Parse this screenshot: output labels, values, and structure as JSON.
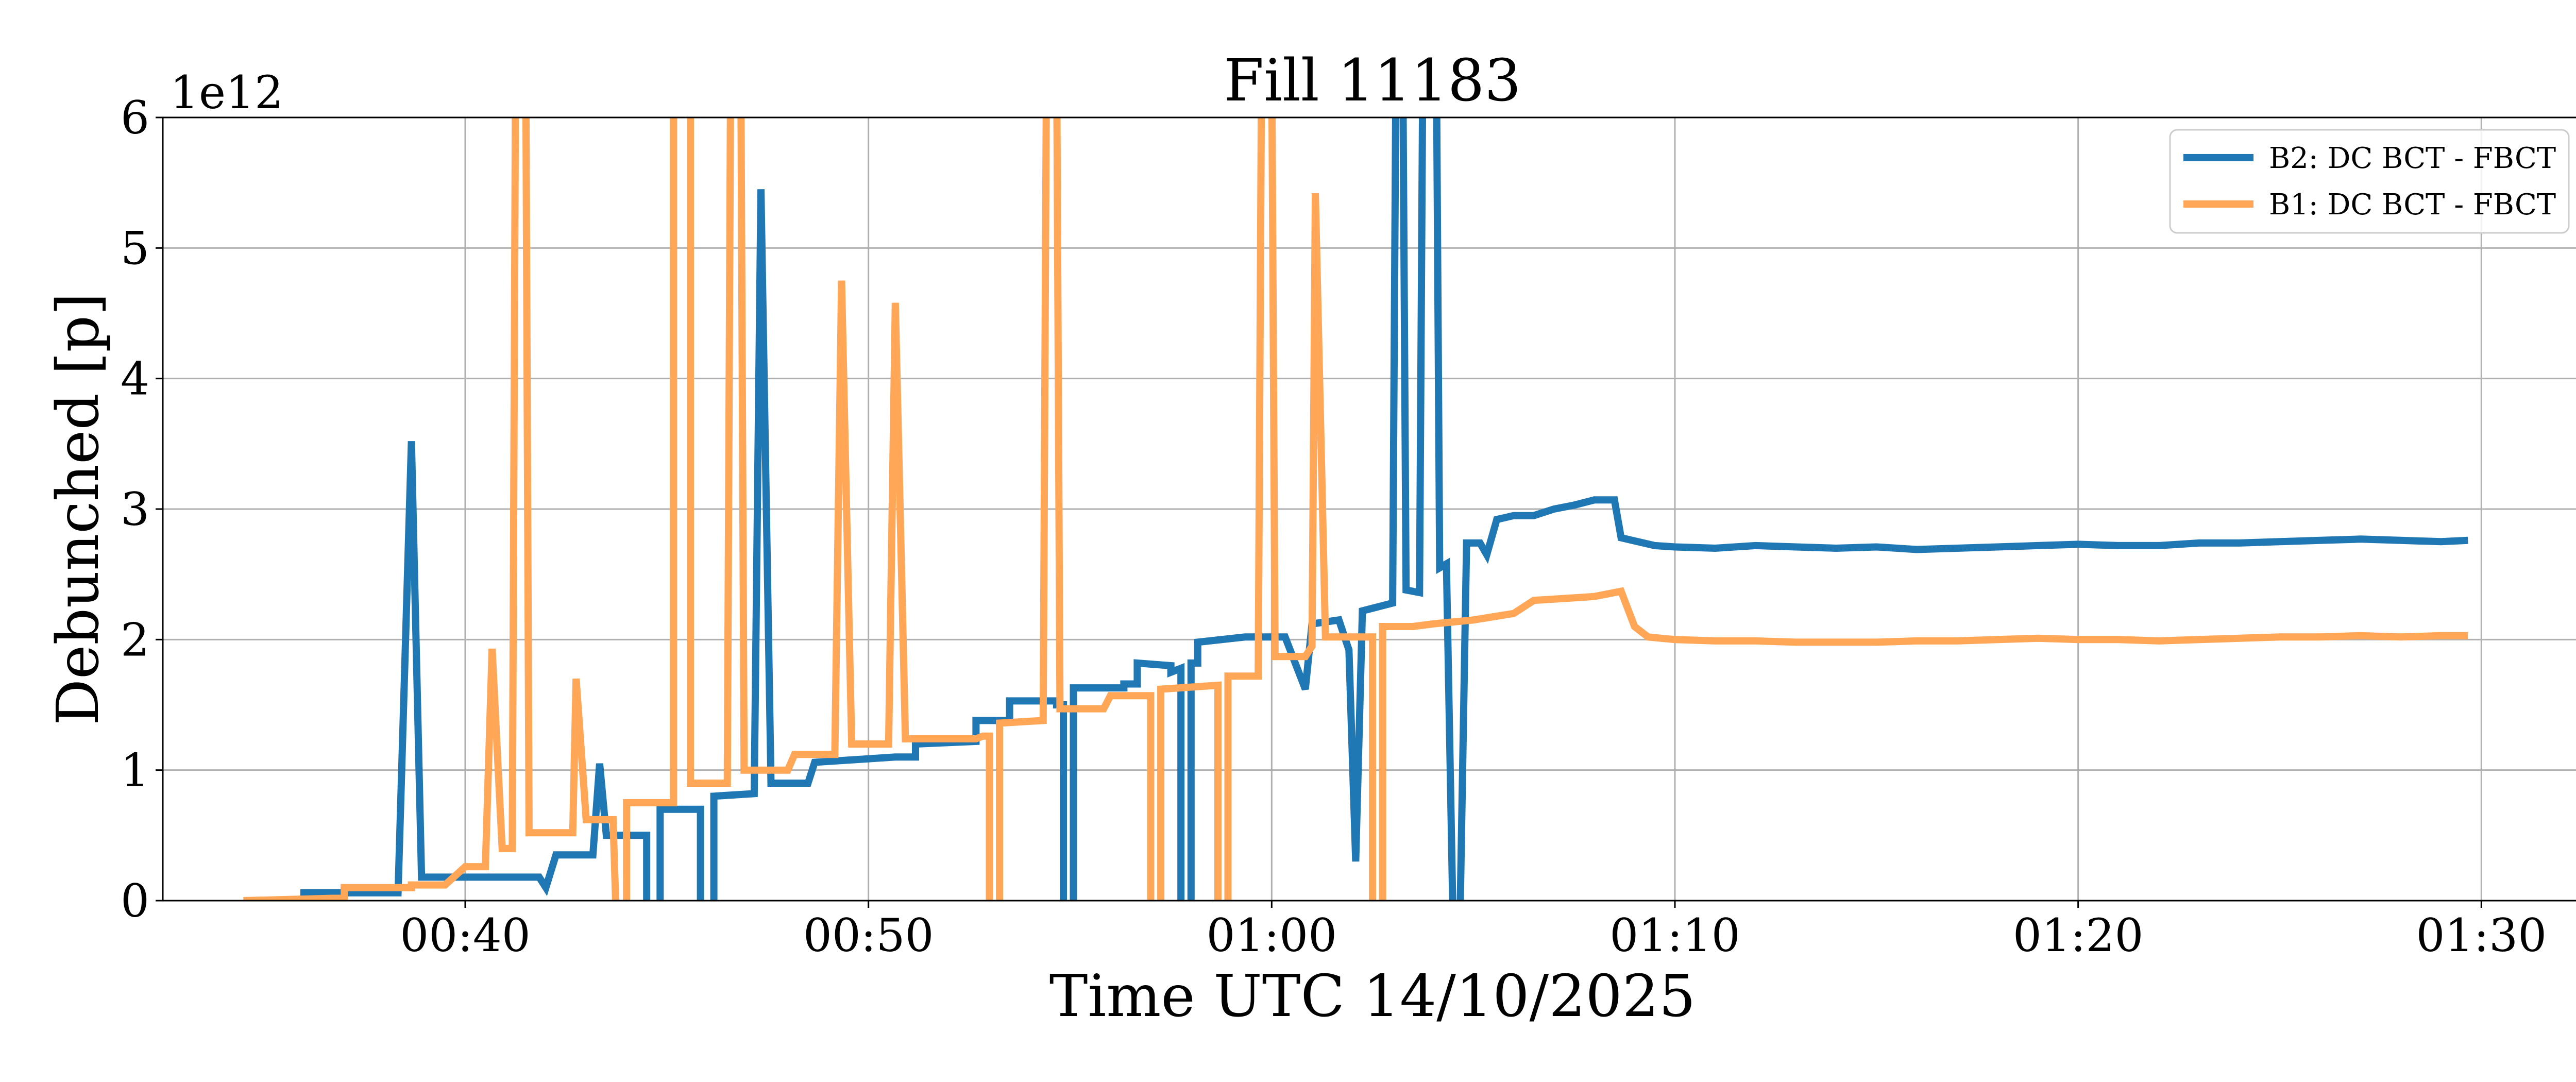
{
  "chart_data": {
    "type": "line",
    "title": "Fill 11183",
    "xlabel": "Time UTC 14/10/2025",
    "ylabel": "Debunched [p]",
    "y_offset_label": "1e12",
    "xlim": [
      "00:32:30",
      "01:32:30"
    ],
    "ylim": [
      0,
      6
    ],
    "y_scale": 1000000000000.0,
    "x_ticks": [
      "00:40",
      "00:50",
      "01:00",
      "01:10",
      "01:20",
      "01:30"
    ],
    "y_ticks": [
      0,
      1,
      2,
      3,
      4,
      5,
      6
    ],
    "grid": true,
    "legend_position": "top-right",
    "series": [
      {
        "name": "B2: DC BCT - FBCT",
        "color": "#1f77b4",
        "points": [
          [
            "00:34:30",
            0.0
          ],
          [
            "00:36:00",
            0.0
          ],
          [
            "00:36:00",
            0.06
          ],
          [
            "00:38:20",
            0.06
          ],
          [
            "00:38:40",
            3.52
          ],
          [
            "00:38:55",
            0.18
          ],
          [
            "00:41:50",
            0.18
          ],
          [
            "00:42:00",
            0.1
          ],
          [
            "00:42:15",
            0.35
          ],
          [
            "00:43:10",
            0.35
          ],
          [
            "00:43:20",
            1.05
          ],
          [
            "00:43:30",
            0.5
          ],
          [
            "00:44:30",
            0.5
          ],
          [
            "00:44:30",
            -0.2
          ],
          [
            "00:44:50",
            -0.2
          ],
          [
            "00:44:50",
            0.7
          ],
          [
            "00:45:50",
            0.7
          ],
          [
            "00:45:50",
            -0.2
          ],
          [
            "00:46:10",
            -0.2
          ],
          [
            "00:46:10",
            0.8
          ],
          [
            "00:47:10",
            0.82
          ],
          [
            "00:47:20",
            5.45
          ],
          [
            "00:47:35",
            0.9
          ],
          [
            "00:48:30",
            0.9
          ],
          [
            "00:48:40",
            1.06
          ],
          [
            "00:50:40",
            1.1
          ],
          [
            "00:51:10",
            1.1
          ],
          [
            "00:51:10",
            1.2
          ],
          [
            "00:52:40",
            1.22
          ],
          [
            "00:52:40",
            1.38
          ],
          [
            "00:53:30",
            1.38
          ],
          [
            "00:53:30",
            1.53
          ],
          [
            "00:54:40",
            1.53
          ],
          [
            "00:54:40",
            1.5
          ],
          [
            "00:54:50",
            1.5
          ],
          [
            "00:54:50",
            -0.2
          ],
          [
            "00:55:05",
            -0.2
          ],
          [
            "00:55:05",
            1.63
          ],
          [
            "00:56:20",
            1.63
          ],
          [
            "00:56:20",
            1.66
          ],
          [
            "00:56:40",
            1.66
          ],
          [
            "00:56:40",
            1.82
          ],
          [
            "00:57:30",
            1.8
          ],
          [
            "00:57:30",
            1.75
          ],
          [
            "00:57:45",
            1.78
          ],
          [
            "00:57:45",
            -0.2
          ],
          [
            "00:58:00",
            -0.2
          ],
          [
            "00:58:00",
            1.82
          ],
          [
            "00:58:10",
            1.82
          ],
          [
            "00:58:10",
            1.98
          ],
          [
            "00:59:20",
            2.02
          ],
          [
            "01:00:20",
            2.02
          ],
          [
            "01:00:50",
            1.62
          ],
          [
            "01:01:00",
            2.12
          ],
          [
            "01:01:40",
            2.15
          ],
          [
            "01:01:55",
            1.92
          ],
          [
            "01:02:05",
            0.3
          ],
          [
            "01:02:15",
            2.22
          ],
          [
            "01:03:00",
            2.28
          ],
          [
            "01:03:05",
            6.5
          ],
          [
            "01:03:15",
            6.5
          ],
          [
            "01:03:20",
            2.38
          ],
          [
            "01:03:40",
            2.36
          ],
          [
            "01:03:45",
            6.5
          ],
          [
            "01:04:05",
            6.5
          ],
          [
            "01:04:10",
            2.55
          ],
          [
            "01:04:20",
            2.58
          ],
          [
            "01:04:30",
            -0.2
          ],
          [
            "01:04:40",
            -0.2
          ],
          [
            "01:04:50",
            2.74
          ],
          [
            "01:05:10",
            2.74
          ],
          [
            "01:05:20",
            2.65
          ],
          [
            "01:05:35",
            2.92
          ],
          [
            "01:06:00",
            2.95
          ],
          [
            "01:06:30",
            2.95
          ],
          [
            "01:07:00",
            3.0
          ],
          [
            "01:07:30",
            3.03
          ],
          [
            "01:08:00",
            3.07
          ],
          [
            "01:08:30",
            3.07
          ],
          [
            "01:08:40",
            2.78
          ],
          [
            "01:09:30",
            2.72
          ],
          [
            "01:10:00",
            2.71
          ],
          [
            "01:11:00",
            2.7
          ],
          [
            "01:12:00",
            2.72
          ],
          [
            "01:13:00",
            2.71
          ],
          [
            "01:14:00",
            2.7
          ],
          [
            "01:15:00",
            2.71
          ],
          [
            "01:16:00",
            2.69
          ],
          [
            "01:17:00",
            2.7
          ],
          [
            "01:18:00",
            2.71
          ],
          [
            "01:19:00",
            2.72
          ],
          [
            "01:20:00",
            2.73
          ],
          [
            "01:21:00",
            2.72
          ],
          [
            "01:22:00",
            2.72
          ],
          [
            "01:23:00",
            2.74
          ],
          [
            "01:24:00",
            2.74
          ],
          [
            "01:25:00",
            2.75
          ],
          [
            "01:26:00",
            2.76
          ],
          [
            "01:27:00",
            2.77
          ],
          [
            "01:28:00",
            2.76
          ],
          [
            "01:29:00",
            2.75
          ],
          [
            "01:29:40",
            2.76
          ]
        ]
      },
      {
        "name": "B1: DC BCT - FBCT",
        "color": "#ffa657",
        "points": [
          [
            "00:34:30",
            0.0
          ],
          [
            "00:37:00",
            0.02
          ],
          [
            "00:37:00",
            0.1
          ],
          [
            "00:38:40",
            0.1
          ],
          [
            "00:38:40",
            0.12
          ],
          [
            "00:39:30",
            0.12
          ],
          [
            "00:40:00",
            0.26
          ],
          [
            "00:40:30",
            0.26
          ],
          [
            "00:40:40",
            1.93
          ],
          [
            "00:40:55",
            0.4
          ],
          [
            "00:41:10",
            0.4
          ],
          [
            "00:41:15",
            6.5
          ],
          [
            "00:41:30",
            6.5
          ],
          [
            "00:41:35",
            0.52
          ],
          [
            "00:42:40",
            0.52
          ],
          [
            "00:42:45",
            1.7
          ],
          [
            "00:43:00",
            0.62
          ],
          [
            "00:43:40",
            0.62
          ],
          [
            "00:43:45",
            -0.2
          ],
          [
            "00:44:00",
            -0.2
          ],
          [
            "00:44:00",
            0.75
          ],
          [
            "00:45:10",
            0.75
          ],
          [
            "00:45:10",
            6.5
          ],
          [
            "00:45:35",
            6.5
          ],
          [
            "00:45:35",
            0.9
          ],
          [
            "00:46:30",
            0.9
          ],
          [
            "00:46:35",
            6.5
          ],
          [
            "00:46:50",
            6.5
          ],
          [
            "00:46:55",
            1.0
          ],
          [
            "00:48:00",
            1.0
          ],
          [
            "00:48:10",
            1.12
          ],
          [
            "00:49:10",
            1.12
          ],
          [
            "00:49:20",
            4.75
          ],
          [
            "00:49:35",
            1.2
          ],
          [
            "00:50:30",
            1.2
          ],
          [
            "00:50:40",
            4.58
          ],
          [
            "00:50:55",
            1.24
          ],
          [
            "00:52:40",
            1.24
          ],
          [
            "00:52:50",
            1.26
          ],
          [
            "00:53:00",
            1.26
          ],
          [
            "00:53:00",
            -0.2
          ],
          [
            "00:53:15",
            -0.2
          ],
          [
            "00:53:15",
            1.36
          ],
          [
            "00:54:20",
            1.38
          ],
          [
            "00:54:25",
            6.5
          ],
          [
            "00:54:40",
            6.5
          ],
          [
            "00:54:45",
            1.47
          ],
          [
            "00:55:50",
            1.47
          ],
          [
            "00:56:00",
            1.57
          ],
          [
            "00:57:00",
            1.57
          ],
          [
            "00:57:00",
            -0.2
          ],
          [
            "00:57:15",
            -0.2
          ],
          [
            "00:57:15",
            1.62
          ],
          [
            "00:58:40",
            1.65
          ],
          [
            "00:58:40",
            -0.2
          ],
          [
            "00:58:55",
            -0.2
          ],
          [
            "00:58:55",
            1.72
          ],
          [
            "00:59:40",
            1.72
          ],
          [
            "00:59:45",
            6.5
          ],
          [
            "01:00:00",
            6.5
          ],
          [
            "01:00:05",
            1.87
          ],
          [
            "01:00:50",
            1.87
          ],
          [
            "01:01:00",
            1.95
          ],
          [
            "01:01:05",
            5.42
          ],
          [
            "01:01:20",
            2.02
          ],
          [
            "01:02:30",
            2.02
          ],
          [
            "01:02:30",
            -0.2
          ],
          [
            "01:02:45",
            -0.2
          ],
          [
            "01:02:45",
            2.1
          ],
          [
            "01:03:30",
            2.1
          ],
          [
            "01:04:00",
            2.12
          ],
          [
            "01:05:00",
            2.15
          ],
          [
            "01:06:00",
            2.2
          ],
          [
            "01:06:30",
            2.3
          ],
          [
            "01:07:30",
            2.32
          ],
          [
            "01:08:00",
            2.33
          ],
          [
            "01:08:40",
            2.37
          ],
          [
            "01:09:00",
            2.1
          ],
          [
            "01:09:20",
            2.02
          ],
          [
            "01:10:00",
            2.0
          ],
          [
            "01:11:00",
            1.99
          ],
          [
            "01:12:00",
            1.99
          ],
          [
            "01:13:00",
            1.98
          ],
          [
            "01:14:00",
            1.98
          ],
          [
            "01:15:00",
            1.98
          ],
          [
            "01:16:00",
            1.99
          ],
          [
            "01:17:00",
            1.99
          ],
          [
            "01:18:00",
            2.0
          ],
          [
            "01:19:00",
            2.01
          ],
          [
            "01:20:00",
            2.0
          ],
          [
            "01:21:00",
            2.0
          ],
          [
            "01:22:00",
            1.99
          ],
          [
            "01:23:00",
            2.0
          ],
          [
            "01:24:00",
            2.01
          ],
          [
            "01:25:00",
            2.02
          ],
          [
            "01:26:00",
            2.02
          ],
          [
            "01:27:00",
            2.03
          ],
          [
            "01:28:00",
            2.02
          ],
          [
            "01:29:00",
            2.03
          ],
          [
            "01:29:40",
            2.03
          ]
        ]
      }
    ]
  }
}
